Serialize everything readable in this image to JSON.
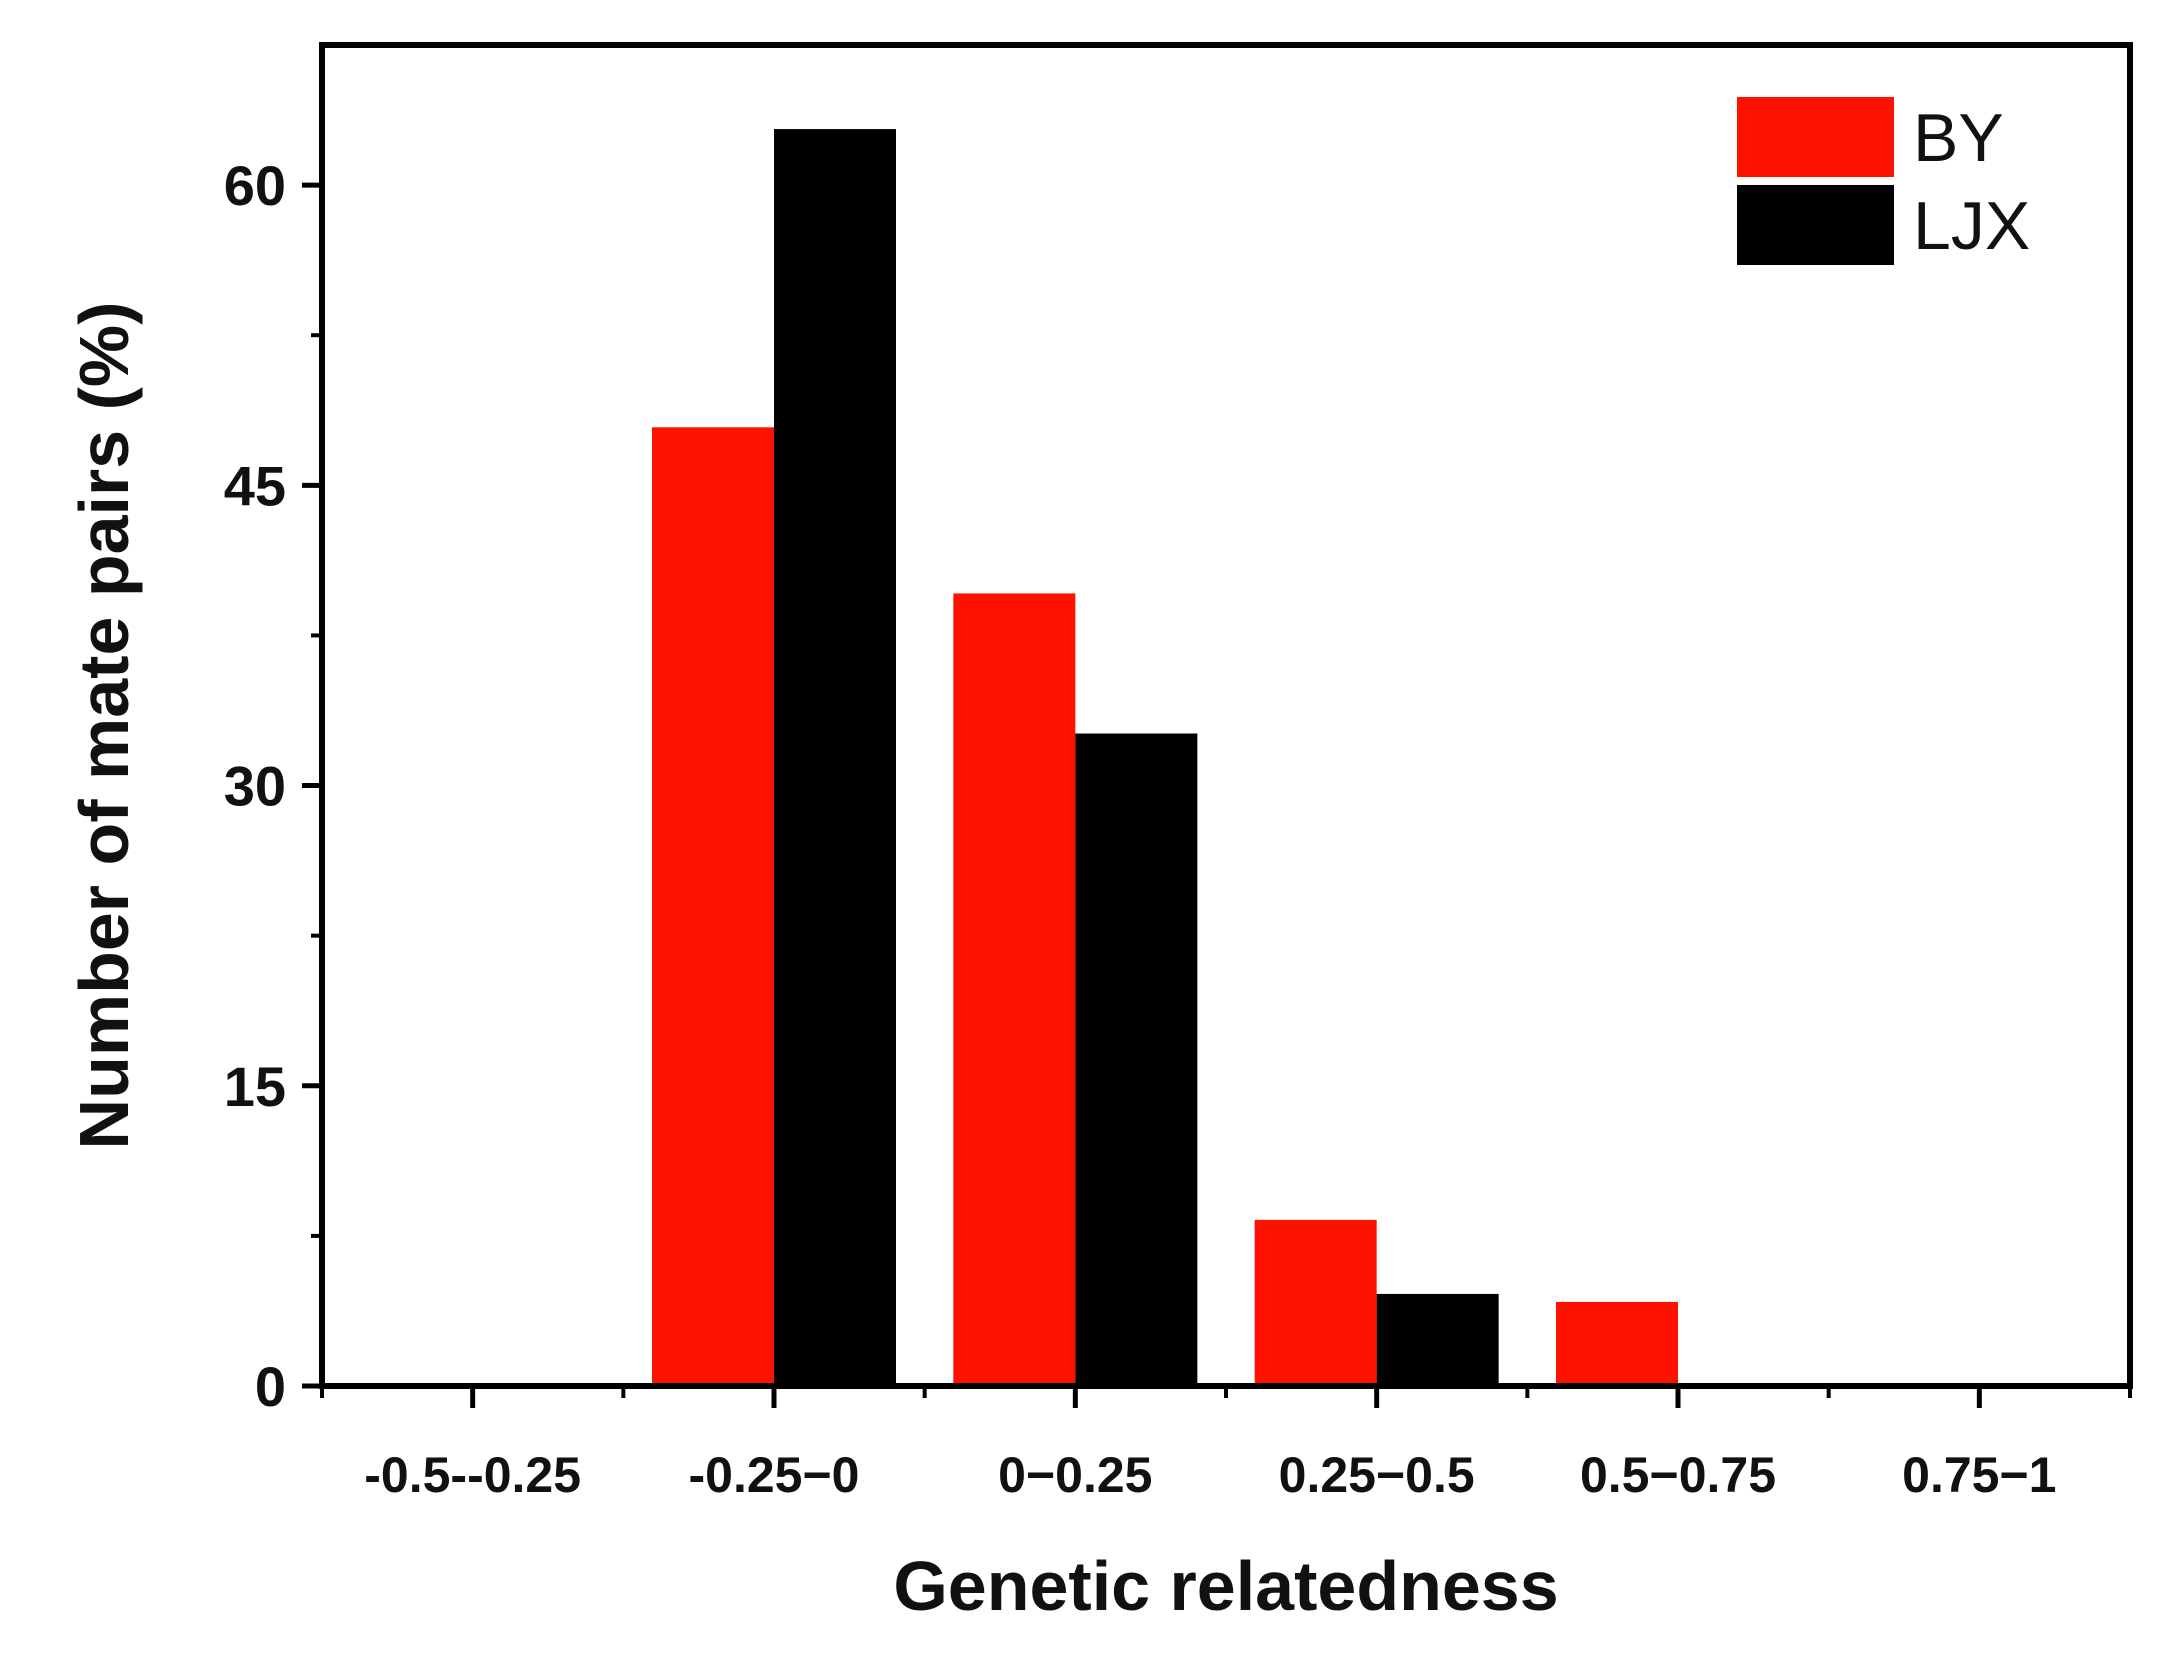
{
  "chart_data": {
    "type": "bar",
    "xlabel": "Genetic relatedness",
    "ylabel": "Number of mate pairs (%)",
    "categories": [
      "-0.5--0.25",
      "-0.25−0",
      "0−0.25",
      "0.25−0.5",
      "0.5−0.75",
      "0.75−1"
    ],
    "series": [
      {
        "name": "BY",
        "color": "#ff1100",
        "values": [
          0,
          47.9,
          39.6,
          8.3,
          4.2,
          0
        ]
      },
      {
        "name": "LJX",
        "color": "#000000",
        "values": [
          0,
          62.8,
          32.6,
          4.6,
          0,
          0
        ]
      }
    ],
    "ylim": [
      0,
      67
    ],
    "yticks": [
      0,
      15,
      30,
      45,
      60
    ],
    "grid": false,
    "legend_position": "top-right"
  }
}
